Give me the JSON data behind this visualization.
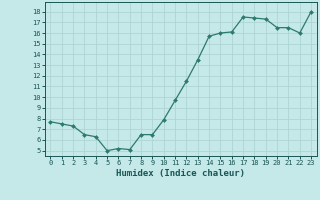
{
  "x": [
    0,
    1,
    2,
    3,
    4,
    5,
    6,
    7,
    8,
    9,
    10,
    11,
    12,
    13,
    14,
    15,
    16,
    17,
    18,
    19,
    20,
    21,
    22,
    23
  ],
  "y": [
    7.7,
    7.5,
    7.3,
    6.5,
    6.3,
    5.0,
    5.2,
    5.1,
    6.5,
    6.5,
    7.9,
    9.7,
    11.5,
    13.5,
    15.7,
    16.0,
    16.1,
    17.5,
    17.4,
    17.3,
    16.5,
    16.5,
    16.0,
    18.0
  ],
  "line_color": "#2d7a6e",
  "marker": "D",
  "marker_size": 2,
  "bg_color": "#c5e8e8",
  "grid_color": "#afd4d4",
  "tick_label_color": "#1a5555",
  "xlabel": "Humidex (Indice chaleur)",
  "xlabel_fontsize": 6.5,
  "ylabel_ticks": [
    5,
    6,
    7,
    8,
    9,
    10,
    11,
    12,
    13,
    14,
    15,
    16,
    17,
    18
  ],
  "xlim": [
    -0.5,
    23.5
  ],
  "ylim": [
    4.5,
    18.9
  ],
  "tick_fontsize": 5.0,
  "linewidth": 0.9
}
